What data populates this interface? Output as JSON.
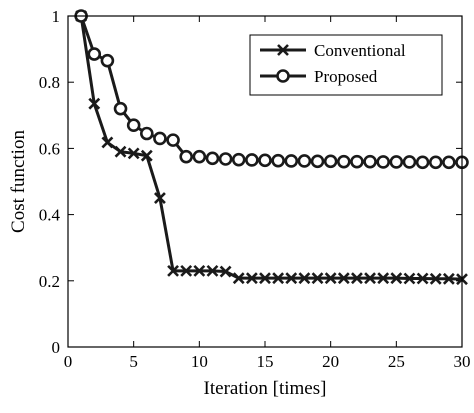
{
  "chart_data": {
    "type": "line",
    "title": "",
    "xlabel": "Iteration [times]",
    "ylabel": "Cost function",
    "xlim": [
      0,
      30
    ],
    "ylim": [
      0,
      1
    ],
    "xticks": [
      0,
      5,
      10,
      15,
      20,
      25,
      30
    ],
    "yticks": [
      0,
      0.2,
      0.4,
      0.6,
      0.8,
      1
    ],
    "xtick_labels": [
      "0",
      "5",
      "10",
      "15",
      "20",
      "25",
      "30"
    ],
    "ytick_labels": [
      "0",
      "0.2",
      "0.4",
      "0.6",
      "0.8",
      "1"
    ],
    "grid": false,
    "legend_position": "top-right",
    "series": [
      {
        "name": "Conventional",
        "marker": "x",
        "color": "#1a1a1a",
        "x": [
          1,
          2,
          3,
          4,
          5,
          6,
          7,
          8,
          9,
          10,
          11,
          12,
          13,
          14,
          15,
          16,
          17,
          18,
          19,
          20,
          21,
          22,
          23,
          24,
          25,
          26,
          27,
          28,
          29,
          30
        ],
        "values": [
          1.0,
          0.735,
          0.618,
          0.59,
          0.585,
          0.578,
          0.45,
          0.23,
          0.23,
          0.23,
          0.23,
          0.228,
          0.208,
          0.208,
          0.208,
          0.208,
          0.208,
          0.208,
          0.208,
          0.208,
          0.208,
          0.208,
          0.208,
          0.208,
          0.208,
          0.207,
          0.207,
          0.206,
          0.206,
          0.205
        ]
      },
      {
        "name": "Proposed",
        "marker": "o",
        "color": "#1a1a1a",
        "x": [
          1,
          2,
          3,
          4,
          5,
          6,
          7,
          8,
          9,
          10,
          11,
          12,
          13,
          14,
          15,
          16,
          17,
          18,
          19,
          20,
          21,
          22,
          23,
          24,
          25,
          26,
          27,
          28,
          29,
          30
        ],
        "values": [
          1.0,
          0.885,
          0.865,
          0.72,
          0.67,
          0.645,
          0.63,
          0.625,
          0.575,
          0.575,
          0.57,
          0.568,
          0.566,
          0.565,
          0.564,
          0.563,
          0.562,
          0.562,
          0.561,
          0.561,
          0.56,
          0.56,
          0.56,
          0.559,
          0.559,
          0.559,
          0.558,
          0.558,
          0.558,
          0.558
        ]
      }
    ]
  }
}
